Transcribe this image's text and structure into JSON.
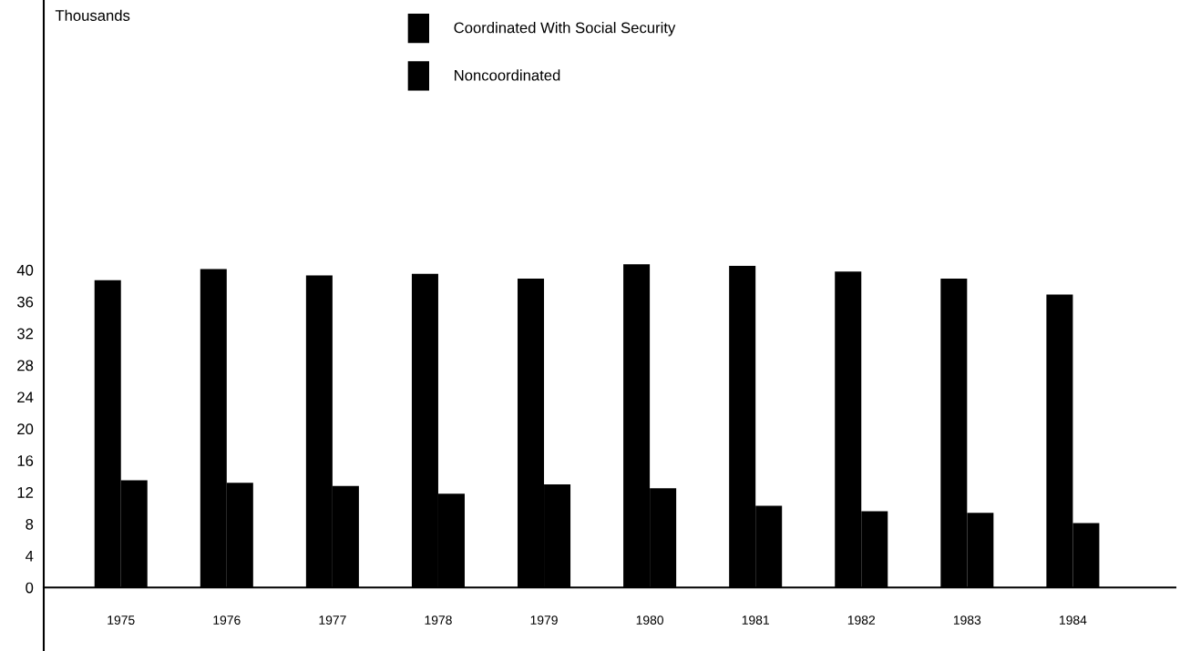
{
  "chart_data": {
    "type": "bar",
    "ylabel": "Thousands",
    "categories": [
      "1975",
      "1976",
      "1977",
      "1978",
      "1979",
      "1980",
      "1981",
      "1982",
      "1983",
      "1984"
    ],
    "series": [
      {
        "name": "Coordinated With Social Security",
        "color": "#000000",
        "values": [
          38.7,
          40.1,
          39.3,
          39.5,
          38.9,
          40.7,
          40.5,
          39.8,
          38.9,
          36.9
        ]
      },
      {
        "name": "Noncoordinated",
        "color": "#000000",
        "values": [
          13.5,
          13.2,
          12.8,
          11.8,
          13.0,
          12.5,
          10.3,
          9.6,
          9.4,
          8.1
        ]
      }
    ],
    "ylim": [
      -8,
      74
    ],
    "yticks": [
      0,
      4,
      8,
      12,
      16,
      20,
      24,
      28,
      32,
      36,
      40
    ],
    "grid": false,
    "legend": "top"
  }
}
